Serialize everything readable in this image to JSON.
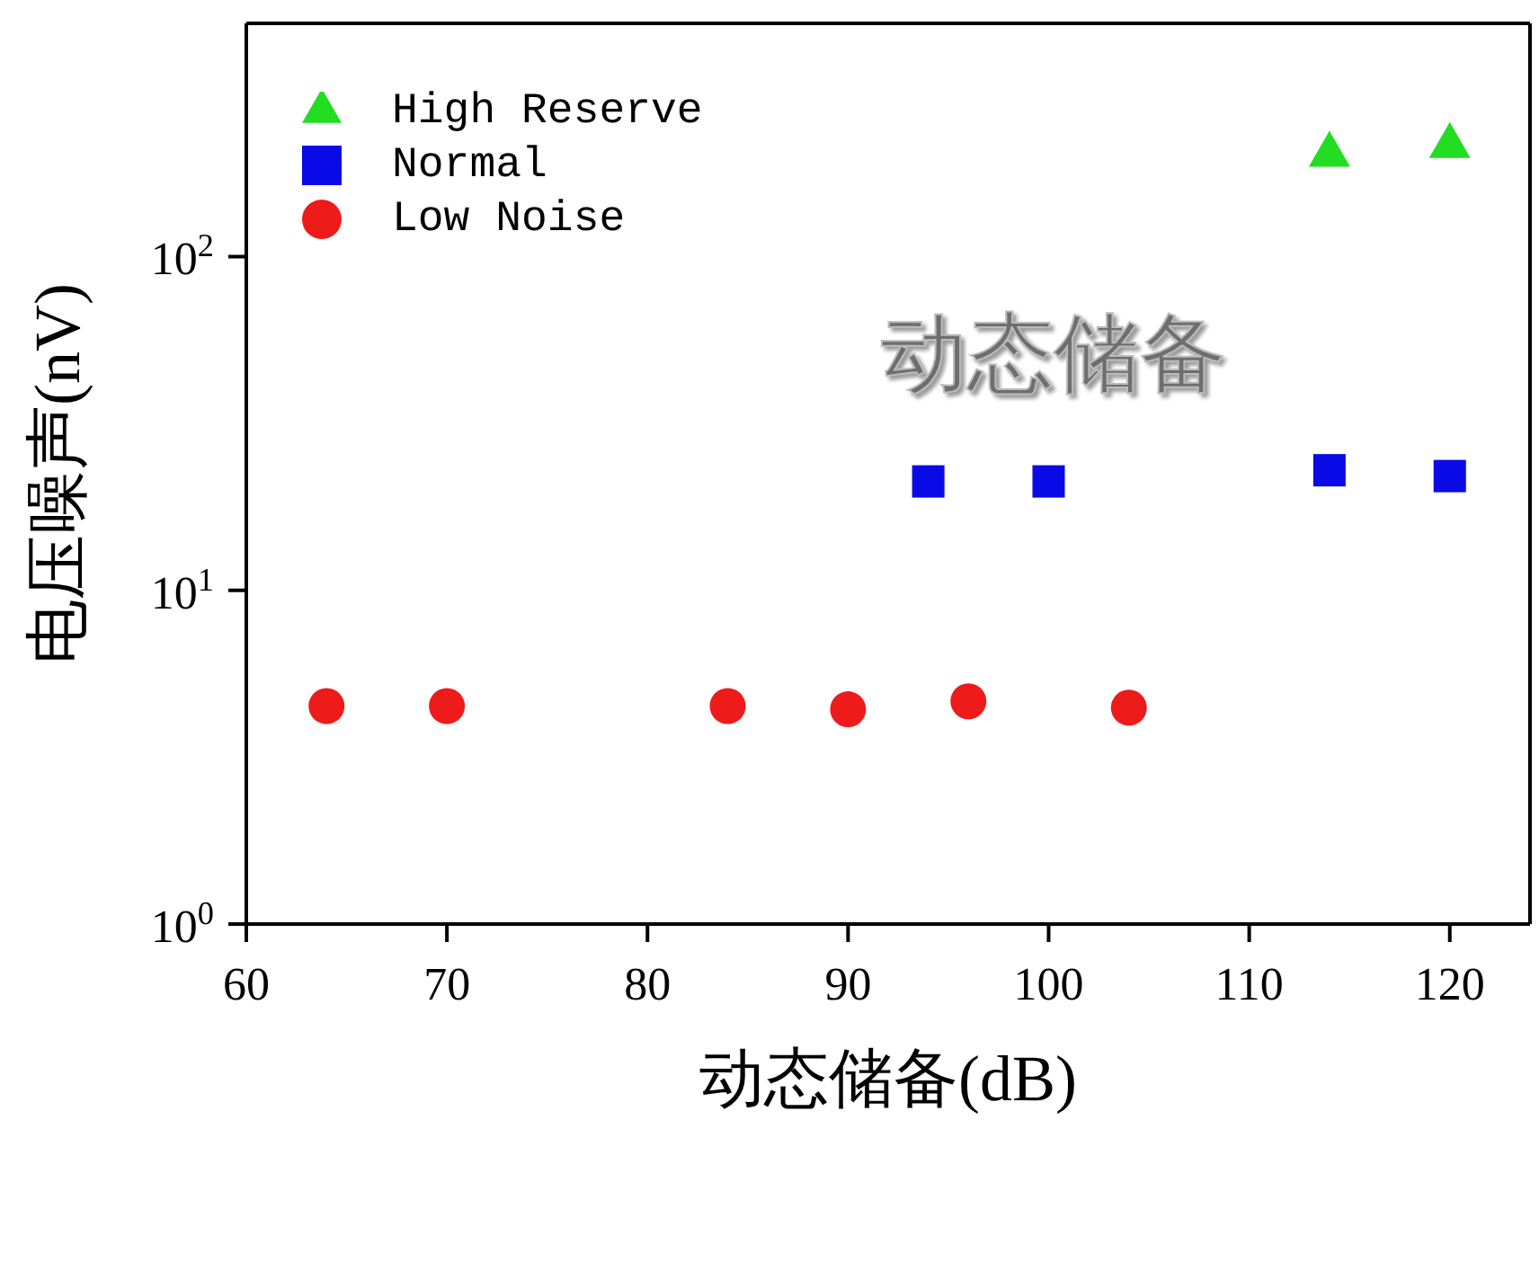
{
  "chart_data": {
    "type": "scatter",
    "xlabel": "动态储备(dB)",
    "ylabel": "电压噪声(nV)",
    "log": "y",
    "xlim": [
      60,
      124
    ],
    "xticks": [
      60,
      70,
      80,
      90,
      100,
      110,
      120
    ],
    "ylim": [
      1,
      500
    ],
    "yticks": [
      {
        "value": 1,
        "label": "10$^{0}$"
      },
      {
        "value": 10,
        "label": "10$^{1}$"
      },
      {
        "value": 100,
        "label": "10$^{2}$"
      }
    ],
    "grid": false,
    "legend": "top left",
    "annotations": [
      "动态储备"
    ],
    "series": [
      {
        "name": "High Reserve",
        "color": "#22dd22",
        "marker": "triangle",
        "x": [
          114,
          120
        ],
        "values": [
          208,
          221
        ]
      },
      {
        "name": "Normal",
        "color": "#0a0ae6",
        "marker": "square",
        "x": [
          94,
          100,
          114,
          120
        ],
        "values": [
          21.2,
          21.2,
          22.9,
          22
        ]
      },
      {
        "name": "Low Noise",
        "color": "#ee1b1b",
        "marker": "circle",
        "x": [
          64,
          70,
          84,
          90,
          96,
          104
        ],
        "values": [
          4.5,
          4.5,
          4.5,
          4.4,
          4.65,
          4.45
        ]
      }
    ]
  }
}
